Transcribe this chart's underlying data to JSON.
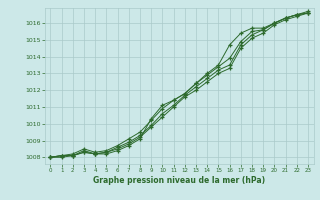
{
  "x": [
    0,
    1,
    2,
    3,
    4,
    5,
    6,
    7,
    8,
    9,
    10,
    11,
    12,
    13,
    14,
    15,
    16,
    17,
    18,
    19,
    20,
    21,
    22,
    23
  ],
  "line1": [
    1008.0,
    1008.1,
    1008.1,
    1008.3,
    1008.2,
    1008.3,
    1008.5,
    1008.8,
    1009.2,
    1009.8,
    1010.4,
    1011.0,
    1011.6,
    1012.0,
    1012.5,
    1013.0,
    1013.3,
    1014.5,
    1015.1,
    1015.4,
    1015.9,
    1016.2,
    1016.4,
    1016.6
  ],
  "line2": [
    1008.0,
    1008.1,
    1008.1,
    1008.4,
    1008.2,
    1008.3,
    1008.6,
    1008.9,
    1009.3,
    1009.9,
    1010.6,
    1011.1,
    1011.7,
    1012.2,
    1012.7,
    1013.2,
    1013.5,
    1014.7,
    1015.3,
    1015.6,
    1016.0,
    1016.3,
    1016.5,
    1016.6
  ],
  "line3": [
    1008.0,
    1008.1,
    1008.2,
    1008.5,
    1008.3,
    1008.4,
    1008.7,
    1009.1,
    1009.5,
    1010.2,
    1010.9,
    1011.4,
    1011.8,
    1012.4,
    1012.9,
    1013.4,
    1013.9,
    1014.9,
    1015.5,
    1015.6,
    1016.0,
    1016.3,
    1016.5,
    1016.6
  ],
  "line4": [
    1008.0,
    1008.0,
    1008.1,
    1008.3,
    1008.2,
    1008.2,
    1008.4,
    1008.7,
    1009.1,
    1010.3,
    1011.1,
    1011.4,
    1011.8,
    1012.4,
    1013.0,
    1013.5,
    1014.7,
    1015.4,
    1015.7,
    1015.7,
    1016.0,
    1016.3,
    1016.5,
    1016.7
  ],
  "ylim": [
    1007.6,
    1016.9
  ],
  "yticks": [
    1008,
    1009,
    1010,
    1011,
    1012,
    1013,
    1014,
    1015,
    1016
  ],
  "xticks": [
    0,
    1,
    2,
    3,
    4,
    5,
    6,
    7,
    8,
    9,
    10,
    11,
    12,
    13,
    14,
    15,
    16,
    17,
    18,
    19,
    20,
    21,
    22,
    23
  ],
  "line_color": "#2d6a2d",
  "bg_color": "#cce8e8",
  "grid_color": "#aacaca",
  "xlabel": "Graphe pression niveau de la mer (hPa)",
  "fig_bg": "#cce8e8"
}
